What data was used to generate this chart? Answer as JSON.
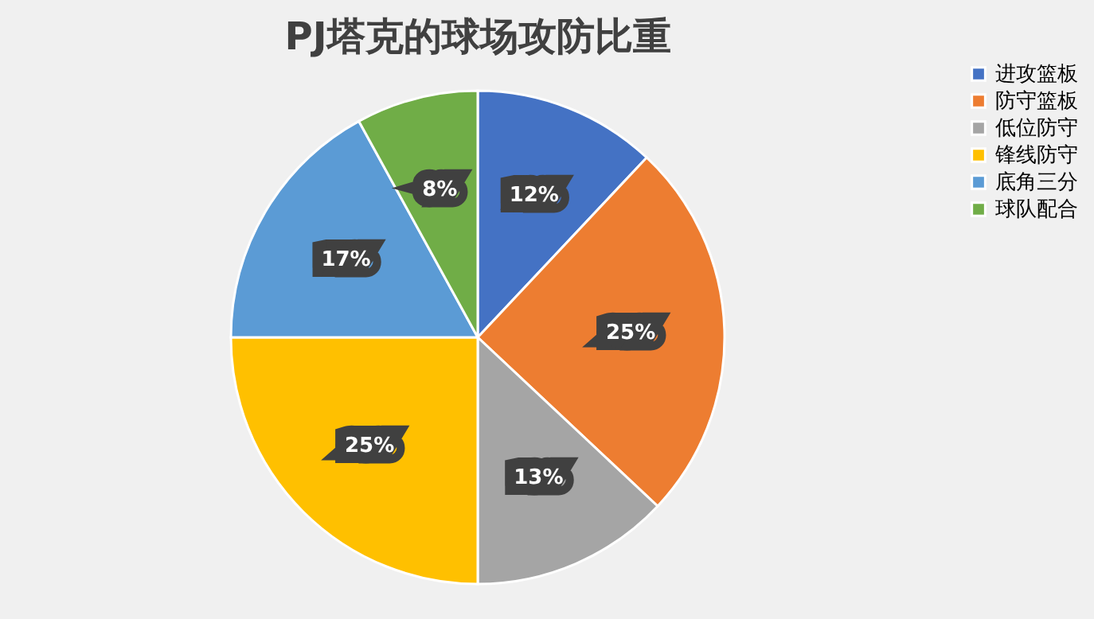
{
  "chart_data": {
    "type": "pie",
    "title": "PJ塔克的球场攻防比重",
    "categories": [
      "进攻篮板",
      "防守篮板",
      "低位防守",
      "锋线防守",
      "底角三分",
      "球队配合"
    ],
    "values": [
      12,
      25,
      13,
      25,
      17,
      8
    ],
    "colors": [
      "#4472c4",
      "#ed7d31",
      "#a5a5a5",
      "#ffc000",
      "#5b9bd5",
      "#70ad47"
    ],
    "value_labels": [
      "12%",
      "25%",
      "13%",
      "25%",
      "17%",
      "8%"
    ],
    "legend": "right"
  }
}
